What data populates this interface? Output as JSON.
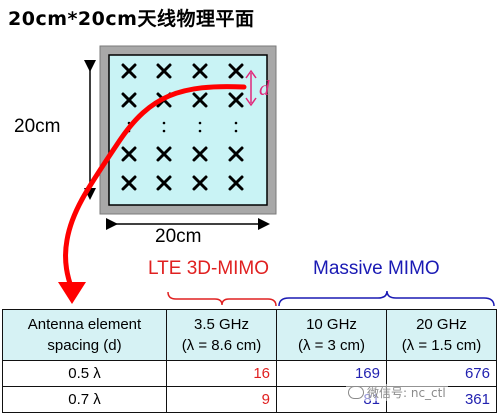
{
  "title": "20cm*20cm天线物理平面",
  "dimension": {
    "side": "20cm",
    "bottom": "20cm",
    "spacing_symbol": "d"
  },
  "array": {
    "rows_top": 2,
    "rows_bottom": 2,
    "columns": 4,
    "ellipsis": ":"
  },
  "groups": {
    "lte": "LTE 3D-MIMO",
    "massive": "Massive MIMO"
  },
  "table": {
    "header": {
      "label_line1": "Antenna element",
      "label_line2": "spacing (d)",
      "cols": [
        {
          "freq": "3.5 GHz",
          "lambda": "(λ = 8.6 cm)"
        },
        {
          "freq": "10 GHz",
          "lambda": "(λ = 3 cm)"
        },
        {
          "freq": "20 GHz",
          "lambda": "(λ = 1.5 cm)"
        }
      ]
    },
    "rows": [
      {
        "spacing": "0.5 λ",
        "values": [
          "16",
          "169",
          "676"
        ]
      },
      {
        "spacing": "0.7 λ",
        "values": [
          "9",
          "81",
          "361"
        ]
      }
    ]
  },
  "watermark": "微信号: nc_ctl",
  "colors": {
    "plate_fill": "#c9f3f5",
    "frame": "#a8a8a8",
    "lte": "#e02020",
    "massive": "#1a1ab4",
    "arrow": "#ff0000",
    "spacing": "#e0287a"
  }
}
